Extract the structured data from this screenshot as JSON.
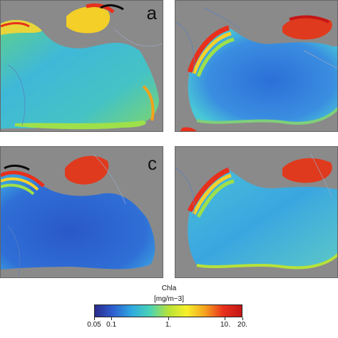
{
  "panels": [
    {
      "id": "a",
      "letter": "a",
      "show_letter": true
    },
    {
      "id": "b",
      "letter": "b",
      "show_letter": false
    },
    {
      "id": "c",
      "letter": "c",
      "show_letter": true
    },
    {
      "id": "d",
      "letter": "d",
      "show_letter": false
    }
  ],
  "colorbar": {
    "title": "Chla",
    "unit": "[mg/m−3]",
    "tick_labels": [
      "0.05",
      "0.1",
      "1.",
      "10.",
      "20."
    ],
    "tick_values": [
      0.05,
      0.1,
      1,
      10,
      20
    ],
    "scale": "log",
    "range": [
      0.05,
      20
    ],
    "colors": [
      "#2b2b8c",
      "#2e5fd0",
      "#2fa8e0",
      "#49d3b6",
      "#b6e23a",
      "#f7f02a",
      "#f5a21f",
      "#e8301c",
      "#c41616"
    ]
  },
  "colors": {
    "land": "#8a8a8a",
    "border_line": "#5a7fc0",
    "coast_black": "#0a0a0a"
  }
}
